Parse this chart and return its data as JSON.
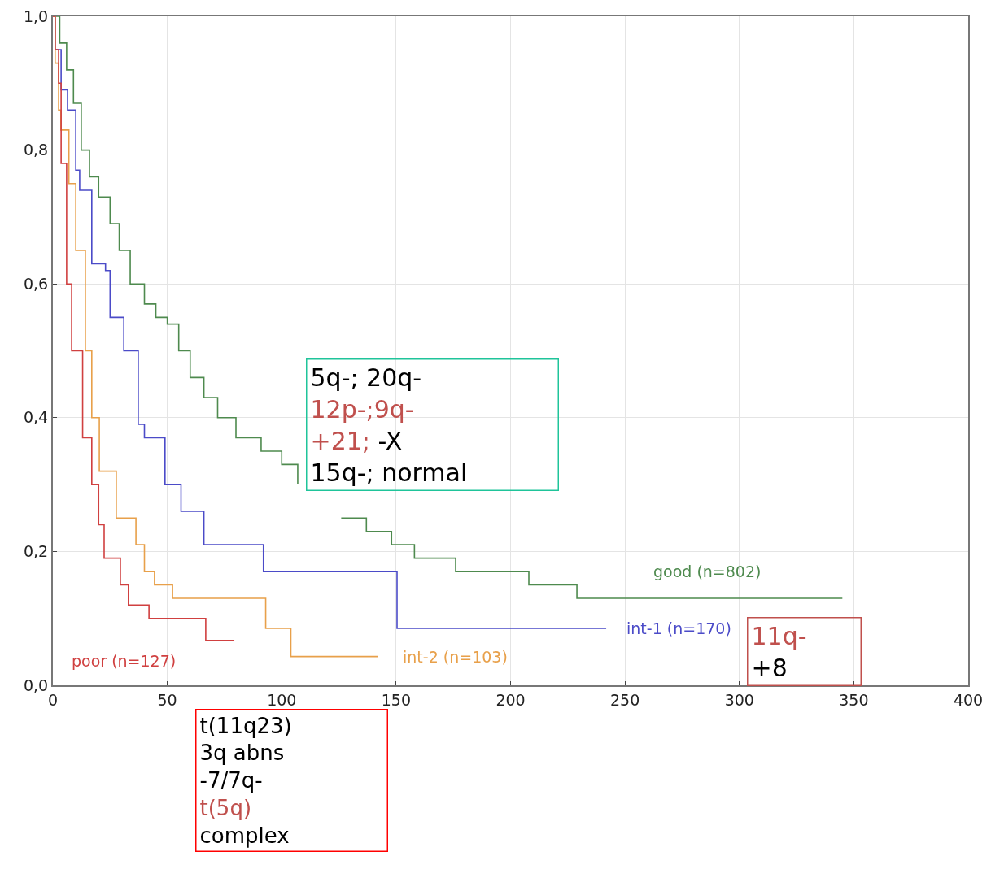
{
  "chart_data": {
    "type": "step",
    "xlim": [
      0,
      400
    ],
    "ylim": [
      0,
      1
    ],
    "xticks": [
      0,
      50,
      100,
      150,
      200,
      250,
      300,
      350,
      400
    ],
    "yticks": [
      {
        "value": 0,
        "label": "0,0"
      },
      {
        "value": 0.2,
        "label": "0,2"
      },
      {
        "value": 0.4,
        "label": "0,4"
      },
      {
        "value": 0.6,
        "label": "0,6"
      },
      {
        "value": 0.8,
        "label": "0,8"
      },
      {
        "value": 1,
        "label": "1,0"
      }
    ],
    "grid": true,
    "series": [
      {
        "name": "good (n=802)",
        "color": "#4e8a4e",
        "x": [
          0,
          3,
          6,
          9,
          12.4,
          16,
          20,
          25,
          29,
          33.8,
          40,
          45,
          50,
          55,
          60,
          66,
          72,
          80,
          91,
          100,
          107,
          118,
          126,
          137,
          148,
          158,
          176,
          208,
          229,
          345
        ],
        "values": [
          1,
          0.96,
          0.92,
          0.87,
          0.8,
          0.76,
          0.73,
          0.69,
          0.65,
          0.6,
          0.57,
          0.55,
          0.54,
          0.5,
          0.46,
          0.43,
          0.4,
          0.37,
          0.35,
          0.33,
          0.3,
          null,
          0.25,
          0.23,
          0.21,
          0.19,
          0.17,
          0.15,
          0.13,
          0.13
        ]
      },
      {
        "name": "int-1 (n=170)",
        "color": "#4b4bc8",
        "x": [
          0,
          1,
          3.6,
          6.4,
          10,
          11.7,
          17,
          23,
          25,
          31,
          37.3,
          40,
          49,
          56,
          66,
          92,
          150.4,
          241.8
        ],
        "values": [
          1,
          0.95,
          0.89,
          0.86,
          0.77,
          0.74,
          0.63,
          0.62,
          0.55,
          0.5,
          0.39,
          0.37,
          0.3,
          0.26,
          0.21,
          0.17,
          0.085,
          0.085
        ]
      },
      {
        "name": "int-2 (n=103)",
        "color": "#e8a04a",
        "x": [
          0,
          1,
          2.5,
          3.5,
          7,
          10,
          14.2,
          17,
          20.3,
          27.7,
          36.3,
          40,
          44.4,
          52.3,
          93,
          104,
          142
        ],
        "values": [
          1,
          0.93,
          0.86,
          0.83,
          0.75,
          0.65,
          0.5,
          0.4,
          0.32,
          0.25,
          0.21,
          0.17,
          0.15,
          0.13,
          0.085,
          0.043,
          0.043
        ]
      },
      {
        "name": "poor (n=127)",
        "color": "#d04040",
        "x": [
          0,
          1,
          2.5,
          3.6,
          6,
          8.2,
          13,
          17,
          20,
          22.4,
          29.5,
          33,
          42,
          66.8,
          79.3
        ],
        "values": [
          1,
          0.95,
          0.9,
          0.78,
          0.6,
          0.5,
          0.37,
          0.3,
          0.24,
          0.19,
          0.15,
          0.12,
          0.1,
          0.067,
          0.067
        ]
      }
    ],
    "annotations": [
      "5q-; 20q-\n12p-;9q-\n+21; -X\n15q-; normal",
      "t(11q23)\n3q abns\n-7/7q-\nt(5q)\ncomplex",
      "11q-\n+8"
    ]
  }
}
